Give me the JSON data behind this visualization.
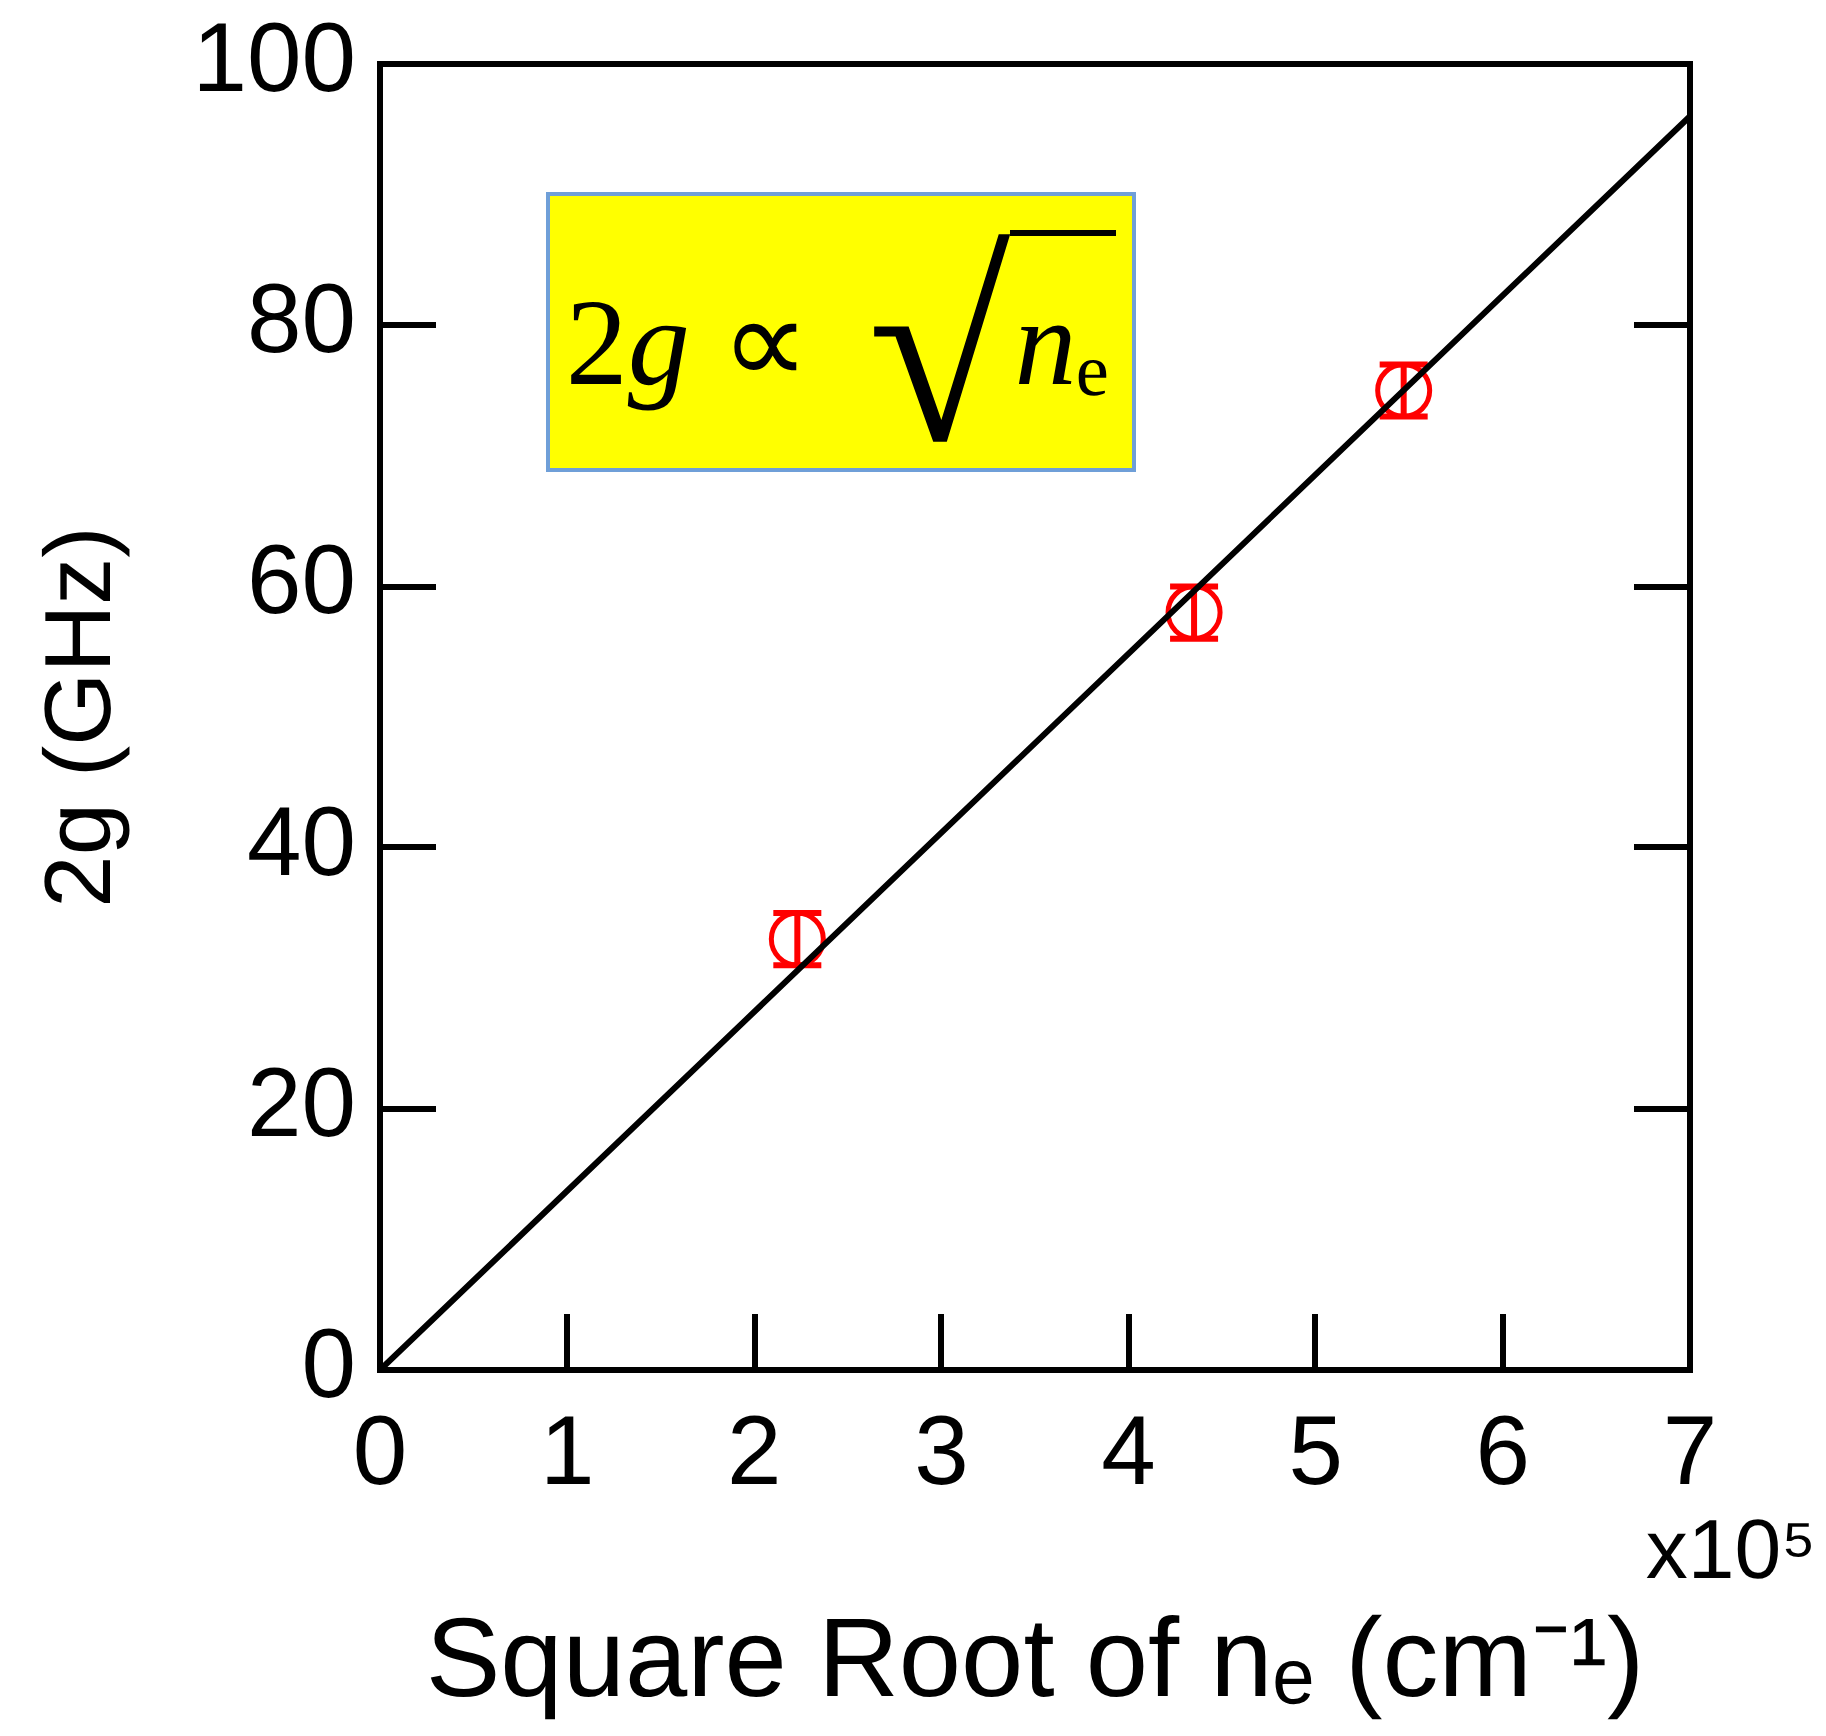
{
  "chart_data": {
    "type": "scatter",
    "xlabel": "Square Root of nₑ (cm⁻¹)",
    "ylabel": "2g (GHz)",
    "annotations": [
      "2g ∝ √nₑ",
      "x10⁵"
    ],
    "xlim": [
      0,
      7
    ],
    "ylim": [
      0,
      100
    ],
    "xticks": [
      0,
      1,
      2,
      3,
      4,
      5,
      6,
      7
    ],
    "yticks": [
      0,
      20,
      40,
      60,
      80,
      100
    ],
    "series": [
      {
        "type": "line",
        "color": "#000000",
        "x": [
          0,
          7
        ],
        "values": [
          0,
          96
        ],
        "marker": "none"
      },
      {
        "color": "#ff0000",
        "x": [
          2.23,
          4.35,
          5.47
        ],
        "values": [
          33,
          58,
          75
        ],
        "errors": [
          2,
          2,
          2
        ],
        "marker": "circle"
      }
    ]
  }
}
